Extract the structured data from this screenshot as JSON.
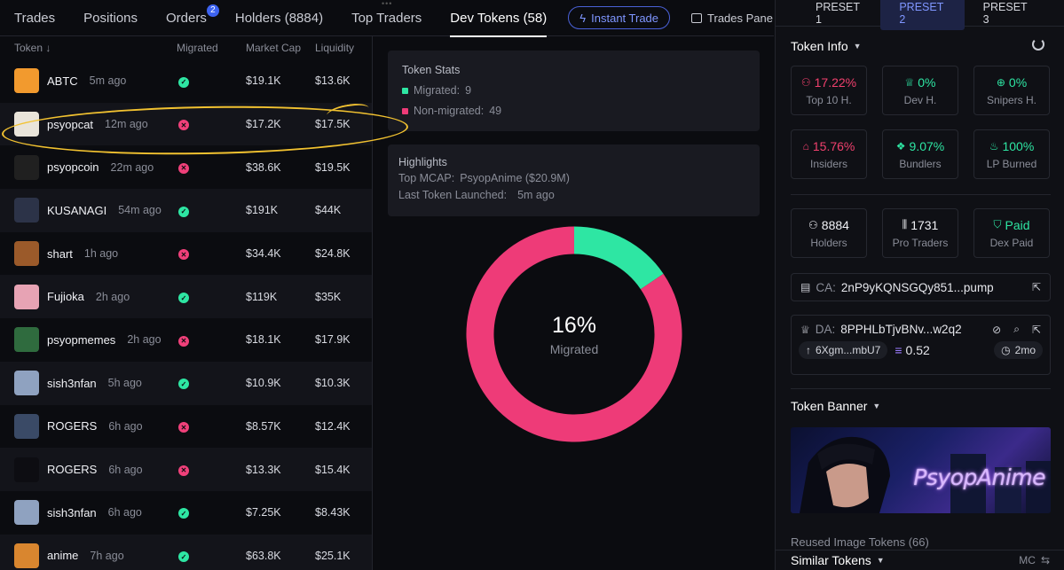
{
  "tabs": [
    {
      "label": "Trades",
      "active": false
    },
    {
      "label": "Positions",
      "active": false
    },
    {
      "label": "Orders",
      "active": false,
      "badge": "2"
    },
    {
      "label": "Holders (8884)",
      "active": false
    },
    {
      "label": "Top Traders",
      "active": false
    },
    {
      "label": "Dev Tokens (58)",
      "active": true
    }
  ],
  "toolbar": {
    "instant_trade": "Instant Trade",
    "trades_panel": "Trades Pane"
  },
  "table": {
    "headers": [
      "Token ↓",
      "Migrated",
      "Market Cap",
      "Liquidity"
    ],
    "rows": [
      {
        "name": "ABTC",
        "age": "5m ago",
        "migrated": true,
        "mcap": "$19.1K",
        "liq": "$13.6K",
        "color": "#f29a2e"
      },
      {
        "name": "psyopcat",
        "age": "12m ago",
        "migrated": false,
        "mcap": "$17.2K",
        "liq": "$17.5K",
        "color": "#e9e4da"
      },
      {
        "name": "psyopcoin",
        "age": "22m ago",
        "migrated": false,
        "mcap": "$38.6K",
        "liq": "$19.5K",
        "color": "#202020"
      },
      {
        "name": "KUSANAGI",
        "age": "54m ago",
        "migrated": true,
        "mcap": "$191K",
        "liq": "$44K",
        "color": "#2c3348"
      },
      {
        "name": "shart",
        "age": "1h ago",
        "migrated": false,
        "mcap": "$34.4K",
        "liq": "$24.8K",
        "color": "#9b5a2a"
      },
      {
        "name": "Fujioka",
        "age": "2h ago",
        "migrated": true,
        "mcap": "$119K",
        "liq": "$35K",
        "color": "#e7a3b4"
      },
      {
        "name": "psyopmemes",
        "age": "2h ago",
        "migrated": false,
        "mcap": "$18.1K",
        "liq": "$17.9K",
        "color": "#2f6b3e"
      },
      {
        "name": "sish3nfan",
        "age": "5h ago",
        "migrated": true,
        "mcap": "$10.9K",
        "liq": "$10.3K",
        "color": "#8fa2c0"
      },
      {
        "name": "ROGERS",
        "age": "6h ago",
        "migrated": false,
        "mcap": "$8.57K",
        "liq": "$12.4K",
        "color": "#3a4a66"
      },
      {
        "name": "ROGERS",
        "age": "6h ago",
        "migrated": false,
        "mcap": "$13.3K",
        "liq": "$15.4K",
        "color": "#0d0d12"
      },
      {
        "name": "sish3nfan",
        "age": "6h ago",
        "migrated": true,
        "mcap": "$7.25K",
        "liq": "$8.43K",
        "color": "#8fa2c0"
      },
      {
        "name": "anime",
        "age": "7h ago",
        "migrated": true,
        "mcap": "$63.8K",
        "liq": "$25.1K",
        "color": "#d9862f"
      }
    ]
  },
  "token_stats": {
    "title": "Token Stats",
    "migrated_label": "Migrated:",
    "migrated_value": "9",
    "non_migrated_label": "Non-migrated:",
    "non_migrated_value": "49"
  },
  "highlights": {
    "title": "Highlights",
    "top_mcap_label": "Top MCAP:",
    "top_mcap_value": "PsyopAnime ($20.9M)",
    "last_launch_label": "Last Token Launched:",
    "last_launch_value": "5m ago"
  },
  "donut": {
    "percent_text": "16%",
    "label": "Migrated",
    "migrated": 9,
    "non_migrated": 49,
    "colors": {
      "migrated": "#2ee6a3",
      "non_migrated": "#ee3b78"
    }
  },
  "presets": [
    "PRESET 1",
    "PRESET 2",
    "PRESET 3"
  ],
  "token_info": {
    "title": "Token Info",
    "stats": [
      {
        "value": "17.22%",
        "label": "Top 10 H.",
        "tone": "red",
        "icon": "user-star-icon",
        "glyph": "⚇"
      },
      {
        "value": "0%",
        "label": "Dev H.",
        "tone": "green",
        "icon": "chef-hat-icon",
        "glyph": "♕"
      },
      {
        "value": "0%",
        "label": "Snipers H.",
        "tone": "green",
        "icon": "crosshair-icon",
        "glyph": "⊕"
      },
      {
        "value": "15.76%",
        "label": "Insiders",
        "tone": "red",
        "icon": "ghost-icon",
        "glyph": "⌂"
      },
      {
        "value": "9.07%",
        "label": "Bundlers",
        "tone": "green",
        "icon": "boxes-icon",
        "glyph": "❖"
      },
      {
        "value": "100%",
        "label": "LP Burned",
        "tone": "green",
        "icon": "flame-icon",
        "glyph": "♨"
      },
      {
        "value": "8884",
        "label": "Holders",
        "tone": "white",
        "icon": "users-icon",
        "glyph": "⚇"
      },
      {
        "value": "1731",
        "label": "Pro Traders",
        "tone": "white",
        "icon": "candles-icon",
        "glyph": "⫼"
      },
      {
        "value": "Paid",
        "label": "Dex Paid",
        "tone": "green",
        "icon": "shield-check-icon",
        "glyph": "⛉"
      }
    ]
  },
  "ca": {
    "label": "CA:",
    "value": "2nP9yKQNSGQy851...pump"
  },
  "da": {
    "label": "DA:",
    "value": "8PPHLbTjvBNv...w2q2",
    "funded_from": "6Xgm...mbU7",
    "sol": "0.52",
    "age": "2mo"
  },
  "banner": {
    "title": "Token Banner",
    "text": "PsyopAnime"
  },
  "reused": {
    "title": "Reused Image Tokens (66)"
  },
  "similar": {
    "title": "Similar Tokens",
    "mc": "MC"
  }
}
